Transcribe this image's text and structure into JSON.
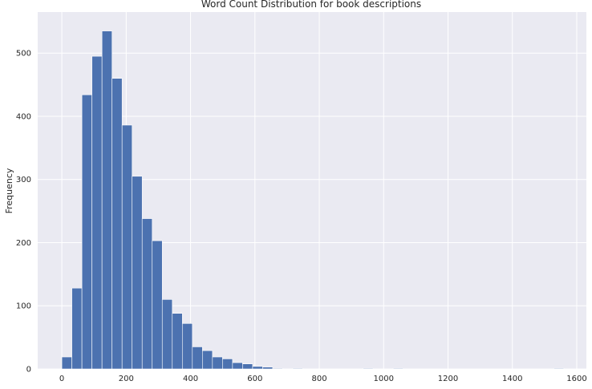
{
  "chart_data": {
    "type": "bar",
    "title": "Word Count Distribution for book descriptions",
    "xlabel": "",
    "ylabel": "Frequency",
    "xlim": [
      -75,
      1630
    ],
    "ylim": [
      0,
      565
    ],
    "x_ticks": [
      0,
      200,
      400,
      600,
      800,
      1000,
      1200,
      1400,
      1600
    ],
    "y_ticks": [
      0,
      100,
      200,
      300,
      400,
      500
    ],
    "grid": true,
    "bin_width": 31.2,
    "bins": [
      {
        "start": 0,
        "end": 31.2,
        "value": 19
      },
      {
        "start": 31.2,
        "end": 62.4,
        "value": 128
      },
      {
        "start": 62.4,
        "end": 93.6,
        "value": 434
      },
      {
        "start": 93.6,
        "end": 124.8,
        "value": 495
      },
      {
        "start": 124.8,
        "end": 156.0,
        "value": 535
      },
      {
        "start": 156.0,
        "end": 187.2,
        "value": 460
      },
      {
        "start": 187.2,
        "end": 218.4,
        "value": 386
      },
      {
        "start": 218.4,
        "end": 249.6,
        "value": 305
      },
      {
        "start": 249.6,
        "end": 280.8,
        "value": 238
      },
      {
        "start": 280.8,
        "end": 312.0,
        "value": 203
      },
      {
        "start": 312.0,
        "end": 343.2,
        "value": 110
      },
      {
        "start": 343.2,
        "end": 374.4,
        "value": 88
      },
      {
        "start": 374.4,
        "end": 405.6,
        "value": 72
      },
      {
        "start": 405.6,
        "end": 436.8,
        "value": 35
      },
      {
        "start": 436.8,
        "end": 468.0,
        "value": 29
      },
      {
        "start": 468.0,
        "end": 499.2,
        "value": 19
      },
      {
        "start": 499.2,
        "end": 530.4,
        "value": 16
      },
      {
        "start": 530.4,
        "end": 561.6,
        "value": 10
      },
      {
        "start": 561.6,
        "end": 592.8,
        "value": 8
      },
      {
        "start": 592.8,
        "end": 624.0,
        "value": 4
      },
      {
        "start": 624.0,
        "end": 655.2,
        "value": 3
      },
      {
        "start": 655.2,
        "end": 686.4,
        "value": 1
      },
      {
        "start": 717.6,
        "end": 748.8,
        "value": 1
      },
      {
        "start": 936.0,
        "end": 967.2,
        "value": 1
      },
      {
        "start": 1029.6,
        "end": 1060.8,
        "value": 1
      },
      {
        "start": 1528.8,
        "end": 1560.0,
        "value": 1
      }
    ],
    "colors": {
      "bar": "#4c72b0",
      "bar_edge": "#ffffff",
      "plot_background": "#eaeaf2",
      "grid": "#ffffff",
      "text": "#262626"
    }
  }
}
